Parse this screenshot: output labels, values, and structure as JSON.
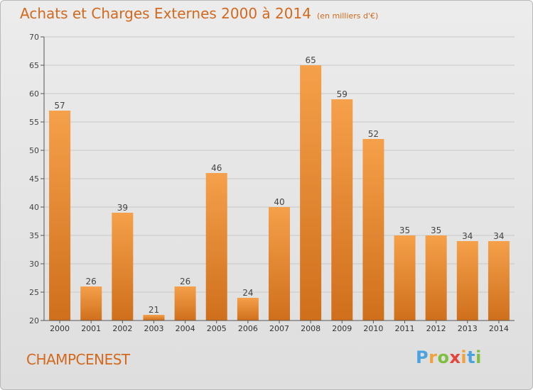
{
  "title": "Achats et Charges Externes 2000 à 2014",
  "unit": "(en milliers d'€)",
  "commune": "CHAMPCENEST",
  "logo": {
    "letters": [
      "P",
      "r",
      "o",
      "x",
      "i",
      "t",
      "i"
    ],
    "colors": [
      "#4aa3df",
      "#f2a23a",
      "#7fbf3f",
      "#e8443a",
      "#f2a23a",
      "#4aa3df",
      "#7fbf3f"
    ]
  },
  "colors": {
    "bar_top": "#f5a04a",
    "bar_bottom": "#cf6f1c",
    "title": "#d2691e",
    "grid": "#c8c8c8"
  },
  "chart_data": {
    "type": "bar",
    "categories": [
      "2000",
      "2001",
      "2002",
      "2003",
      "2004",
      "2005",
      "2006",
      "2007",
      "2008",
      "2009",
      "2010",
      "2011",
      "2012",
      "2013",
      "2014"
    ],
    "values": [
      57,
      26,
      39,
      21,
      26,
      46,
      24,
      40,
      65,
      59,
      52,
      35,
      35,
      34,
      34
    ],
    "data_labels": [
      "57",
      "26",
      "39",
      "21",
      "26",
      "46",
      "24",
      "40",
      "65",
      "59",
      "52",
      "35",
      "35",
      "34",
      "34"
    ],
    "ylim": [
      20,
      70
    ],
    "yticks": [
      20,
      25,
      30,
      35,
      40,
      45,
      50,
      55,
      60,
      65,
      70
    ],
    "ytick_labels": [
      "20",
      "25",
      "30",
      "35",
      "40",
      "45",
      "50",
      "55",
      "60",
      "65",
      "70"
    ],
    "grid": true,
    "legend": "none"
  }
}
